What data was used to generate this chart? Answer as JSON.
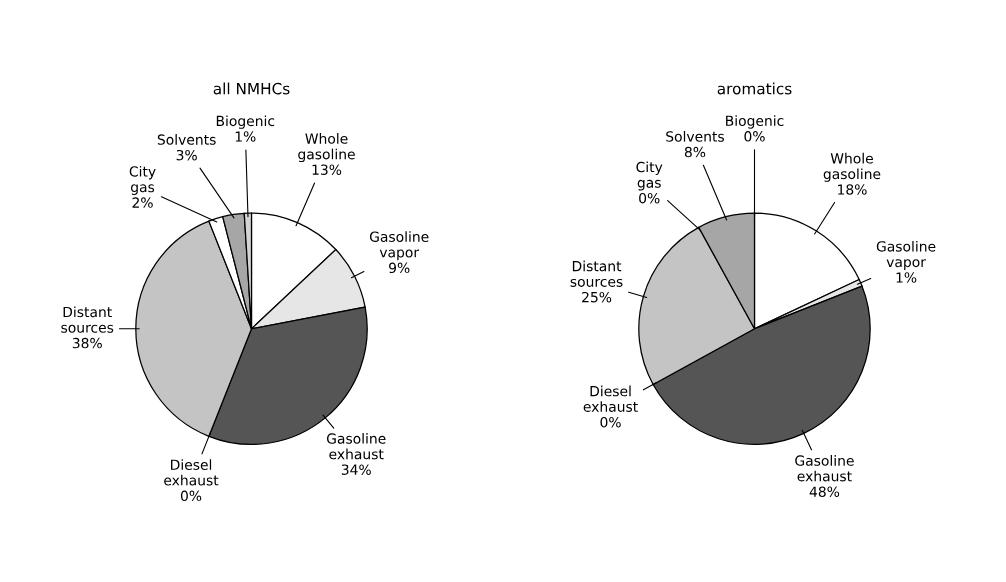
{
  "chart_data": [
    {
      "type": "pie",
      "title": "all NMHCs",
      "categories": [
        "Whole gasoline",
        "Gasoline vapor",
        "Gasoline exhaust",
        "Diesel exhaust",
        "Distant sources",
        "City gas",
        "Solvents",
        "Biogenic"
      ],
      "values": [
        13,
        9,
        34,
        0,
        38,
        2,
        3,
        1
      ],
      "value_labels": [
        "13%",
        "9%",
        "34%",
        "0%",
        "38%",
        "2%",
        "3%",
        "1%"
      ],
      "colors": [
        "#ffffff",
        "#e6e6e6",
        "#555555",
        "#000000",
        "#c4c4c4",
        "#ffffff",
        "#a6a6a6",
        "#d4d4d4"
      ]
    },
    {
      "type": "pie",
      "title": "aromatics",
      "categories": [
        "Whole gasoline",
        "Gasoline vapor",
        "Gasoline exhaust",
        "Diesel exhaust",
        "Distant sources",
        "City gas",
        "Solvents",
        "Biogenic"
      ],
      "values": [
        18,
        1,
        48,
        0,
        25,
        0,
        8,
        0
      ],
      "value_labels": [
        "18%",
        "1%",
        "48%",
        "0%",
        "25%",
        "0%",
        "8%",
        "0%"
      ],
      "colors": [
        "#ffffff",
        "#e6e6e6",
        "#555555",
        "#000000",
        "#c4c4c4",
        "#ffffff",
        "#a6a6a6",
        "#d4d4d4"
      ]
    }
  ]
}
